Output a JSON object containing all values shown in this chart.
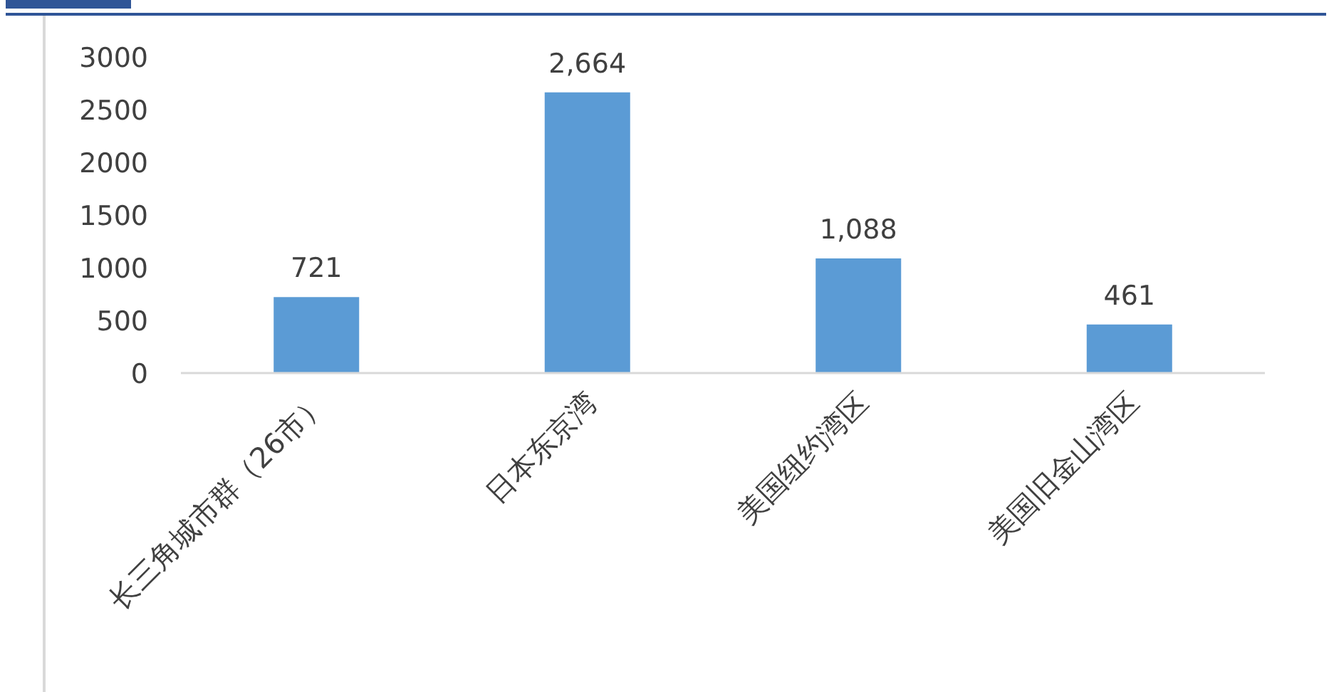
{
  "chart_data": {
    "type": "bar",
    "categories": [
      "长三角城市群（26市）",
      "日本东京湾",
      "美国纽约湾区",
      "美国旧金山湾区"
    ],
    "values": [
      721,
      2664,
      1088,
      461
    ],
    "color": "#5b9bd5",
    "value_labels": [
      "721",
      "2,664",
      "1,088",
      "461"
    ],
    "ylim": [
      0,
      3000
    ],
    "yticks": [
      0,
      500,
      1000,
      1500,
      2000,
      2500,
      3000
    ],
    "grid": false
  }
}
